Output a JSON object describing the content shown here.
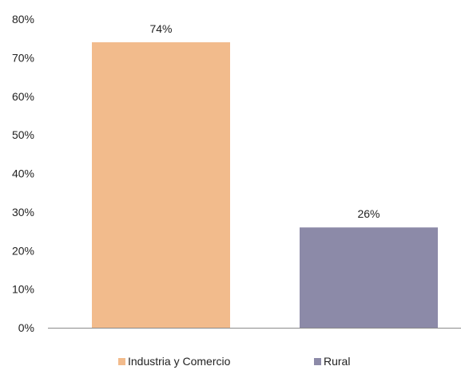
{
  "chart_data": {
    "type": "bar",
    "categories": [
      "Industria y Comercio",
      "Rural"
    ],
    "values": [
      74,
      26
    ],
    "data_labels": [
      "74%",
      "26%"
    ],
    "colors": [
      "#F2BB8C",
      "#8C8AA8"
    ],
    "ylim": [
      0,
      80
    ],
    "y_ticks": [
      0,
      10,
      20,
      30,
      40,
      50,
      60,
      70,
      80
    ],
    "y_tick_labels": [
      "0%",
      "10%",
      "20%",
      "30%",
      "40%",
      "50%",
      "60%",
      "70%",
      "80%"
    ],
    "grid": false,
    "legend": {
      "placement": "bottom",
      "entries": [
        "Industria y Comercio",
        "Rural"
      ]
    },
    "title": "",
    "xlabel": "",
    "ylabel": ""
  }
}
